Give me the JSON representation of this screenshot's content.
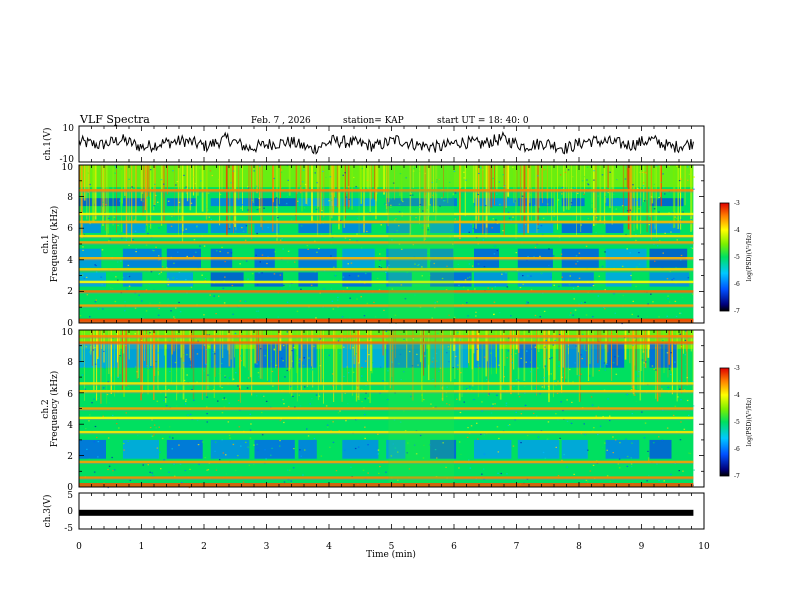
{
  "header": {
    "title": "VLF Spectra",
    "date": "Feb. 7 , 2026",
    "station": "station= KAP",
    "start": "start UT = 18: 40: 0"
  },
  "chart_data": [
    {
      "type": "line",
      "name": "ch1-voltage",
      "ylabel": "ch.1(V)",
      "ylim": [
        -10,
        10
      ],
      "ytick_labels": [
        "10",
        "-10"
      ],
      "x_range_min": [
        0,
        9.83
      ],
      "description_series": "noisy trace oscillating roughly between -6 and 6 V",
      "sample_y_V": [
        2,
        -1,
        4,
        -3,
        1,
        3,
        -2,
        5,
        -4,
        0,
        2,
        -5,
        3,
        1,
        -2,
        4,
        -1,
        -3,
        2,
        0,
        5,
        -2,
        1,
        -4,
        3,
        2,
        -1,
        4,
        -3,
        1
      ]
    },
    {
      "type": "heatmap",
      "name": "ch1-spectrogram",
      "ylabel": "ch.1",
      "ylabel2": "Frequency (kHz)",
      "ylim": [
        0,
        10
      ],
      "ytick_labels": [
        "0",
        "2",
        "4",
        "6",
        "8",
        "10"
      ],
      "colorbar": {
        "label": "log(PSD)(V²/Hz)",
        "range": [
          -7,
          -3
        ],
        "tick_labels": [
          "-3",
          "-4",
          "-5",
          "-6",
          "-7"
        ]
      },
      "bands_kHz": [
        {
          "f": 0.2,
          "level": -3.2
        },
        {
          "f": 1.1,
          "level": -3.6
        },
        {
          "f": 2.0,
          "level": -3.4
        },
        {
          "f": 2.6,
          "level": -4.0
        },
        {
          "f": 3.4,
          "level": -3.8
        },
        {
          "f": 4.1,
          "level": -3.7
        },
        {
          "f": 5.1,
          "level": -3.6
        },
        {
          "f": 5.5,
          "level": -3.9
        },
        {
          "f": 6.4,
          "level": -3.7
        },
        {
          "f": 6.9,
          "level": -4.0
        },
        {
          "f": 8.4,
          "level": -3.5
        }
      ],
      "blue_zones_kHz": [
        [
          2.3,
          3.2
        ],
        [
          3.5,
          4.7
        ],
        [
          5.7,
          6.3
        ],
        [
          7.4,
          7.9
        ]
      ],
      "background_level": -5.0,
      "upper_emission_kHz": [
        8.6,
        10
      ],
      "discontinuity_min": [
        4.95,
        6.0
      ]
    },
    {
      "type": "heatmap",
      "name": "ch2-spectrogram",
      "ylabel": "ch.2",
      "ylabel2": "Frequency (kHz)",
      "ylim": [
        0,
        10
      ],
      "ytick_labels": [
        "0",
        "2",
        "4",
        "6",
        "8",
        "10"
      ],
      "colorbar": {
        "label": "log(PSD)(V²/Hz)",
        "range": [
          -7,
          -3
        ],
        "tick_labels": [
          "-3",
          "-4",
          "-5",
          "-6",
          "-7"
        ]
      },
      "bands_kHz": [
        {
          "f": 0.6,
          "level": -3.5
        },
        {
          "f": 1.6,
          "level": -3.6
        },
        {
          "f": 3.5,
          "level": -3.9
        },
        {
          "f": 4.4,
          "level": -4.0
        },
        {
          "f": 5.0,
          "level": -3.6
        },
        {
          "f": 6.1,
          "level": -3.8
        },
        {
          "f": 6.6,
          "level": -3.9
        },
        {
          "f": 9.2,
          "level": -3.4
        },
        {
          "f": 9.6,
          "level": -3.5
        }
      ],
      "blue_zones_kHz": [
        [
          1.8,
          3.0
        ],
        [
          7.6,
          9.2
        ]
      ],
      "background_level": -5.0,
      "upper_emission_kHz": [
        8.8,
        10
      ],
      "discontinuity_min": [
        4.95,
        6.0
      ]
    },
    {
      "type": "line",
      "name": "ch3-voltage",
      "ylabel": "ch.3(V)",
      "ylim": [
        -5,
        5
      ],
      "ytick_labels": [
        "5",
        "0",
        "-5"
      ],
      "constant_value_V": -0.5,
      "x_range_min": [
        0,
        9.83
      ]
    }
  ],
  "xaxis": {
    "label": "Time (min)",
    "xlim": [
      0,
      10
    ],
    "tick_labels": [
      "0",
      "1",
      "2",
      "3",
      "4",
      "5",
      "6",
      "7",
      "8",
      "9",
      "10"
    ]
  },
  "colors": {
    "trace": "#000000",
    "axes": "#000000"
  }
}
